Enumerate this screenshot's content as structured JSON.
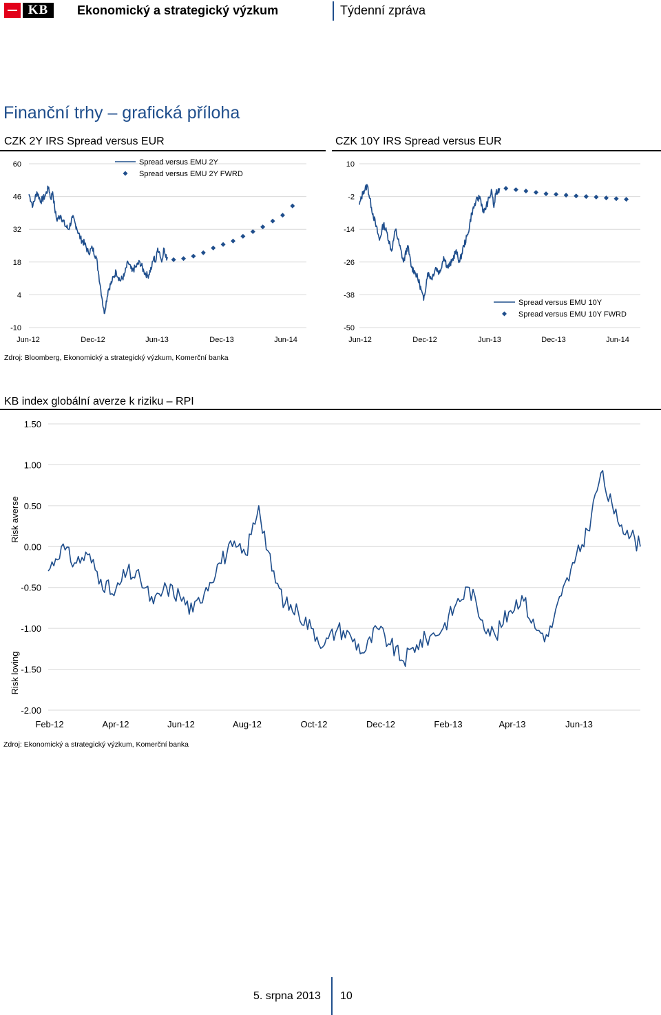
{
  "header": {
    "title": "Ekonomický a strategický výzkum",
    "subtitle": "Týdenní zpráva",
    "logo_text": "KB"
  },
  "page_title": "Finanční trhy – grafická příloha",
  "colors": {
    "series": "#1f4e8c",
    "title_blue": "#1f4e8c",
    "logo_red": "#e2001a"
  },
  "charts": {
    "c1": {
      "title": "CZK 2Y IRS Spread versus EUR"
    },
    "c2": {
      "title": "CZK 10Y IRS Spread versus EUR"
    },
    "c3": {
      "title": "KB index globální averze k riziku – RPI"
    }
  },
  "sources": {
    "top": "Zdroj: Bloomberg, Ekonomický a strategický výzkum, Komerční banka",
    "bottom": "Zdroj: Ekonomický a strategický výzkum, Komerční banka"
  },
  "footer": {
    "date": "5. srpna 2013",
    "page": "10"
  },
  "chart_data": [
    {
      "type": "line",
      "title": "CZK 2Y IRS Spread versus EUR",
      "ylim": [
        -10,
        60
      ],
      "y_ticks": [
        "60",
        "46",
        "32",
        "18",
        "4",
        "-10"
      ],
      "x_ticks": [
        "Jun-12",
        "Dec-12",
        "Jun-13",
        "Dec-13",
        "Jun-14"
      ],
      "legend_position": "top-center",
      "series": [
        {
          "name": "Spread versus EMU 2Y",
          "style": "line",
          "x": [
            0,
            2,
            4,
            6,
            8,
            10,
            11,
            12,
            13,
            14,
            16,
            18,
            20,
            22,
            24,
            26,
            28,
            30,
            32,
            34,
            35,
            36,
            37,
            38,
            40,
            42,
            44,
            46,
            48,
            50,
            52,
            54,
            56,
            58,
            60,
            62,
            63,
            64,
            65,
            66,
            67,
            68,
            69,
            70
          ],
          "values": [
            47,
            42,
            48,
            44,
            46,
            50,
            45,
            48,
            41,
            36,
            38,
            34,
            32,
            37,
            33,
            28,
            26,
            22,
            24,
            20,
            14,
            8,
            2,
            -4,
            6,
            10,
            14,
            10,
            12,
            18,
            14,
            16,
            18,
            14,
            12,
            16,
            20,
            18,
            24,
            22,
            18,
            24,
            20,
            20
          ]
        },
        {
          "name": "Spread versus EMU 2Y FWRD",
          "style": "diamond-markers",
          "x": [
            73,
            78,
            83,
            88,
            93,
            98,
            103,
            108,
            113,
            118,
            123,
            128,
            133
          ],
          "values": [
            19,
            19.5,
            20.5,
            22,
            24,
            25.5,
            27,
            29,
            31,
            33,
            35.5,
            38,
            42
          ]
        }
      ]
    },
    {
      "type": "line",
      "title": "CZK 10Y IRS Spread versus EUR",
      "ylim": [
        -50,
        10
      ],
      "y_ticks": [
        "10",
        "-2",
        "-14",
        "-26",
        "-38",
        "-50"
      ],
      "x_ticks": [
        "Jun-12",
        "Dec-12",
        "Jun-13",
        "Dec-13",
        "Jun-14"
      ],
      "legend_position": "bottom-right",
      "series": [
        {
          "name": "Spread versus EMU 10Y",
          "style": "line",
          "x": [
            0,
            2,
            4,
            6,
            8,
            10,
            12,
            14,
            16,
            18,
            20,
            22,
            24,
            26,
            28,
            30,
            32,
            34,
            36,
            38,
            40,
            42,
            44,
            46,
            48,
            50,
            52,
            54,
            56,
            58,
            60,
            62,
            64,
            66,
            67,
            68,
            69,
            70
          ],
          "values": [
            -5,
            0,
            2,
            -6,
            -12,
            -18,
            -12,
            -16,
            -22,
            -14,
            -20,
            -26,
            -20,
            -28,
            -30,
            -34,
            -40,
            -30,
            -32,
            -28,
            -30,
            -24,
            -28,
            -26,
            -22,
            -26,
            -20,
            -16,
            -8,
            -4,
            -2,
            -8,
            -4,
            0,
            -6,
            -1,
            0,
            1
          ]
        },
        {
          "name": "Spread versus EMU 10Y FWRD",
          "style": "diamond-markers",
          "x": [
            73,
            78,
            83,
            88,
            93,
            98,
            103,
            108,
            113,
            118,
            123,
            128,
            133
          ],
          "values": [
            1,
            0.5,
            0,
            -0.5,
            -1,
            -1.2,
            -1.5,
            -1.8,
            -2,
            -2.2,
            -2.5,
            -2.8,
            -3
          ]
        }
      ]
    },
    {
      "type": "line",
      "title": "KB index globální averze k riziku – RPI",
      "ylim": [
        -2.0,
        1.5
      ],
      "y_ticks": [
        "1.50",
        "1.00",
        "0.50",
        "0.00",
        "-0.50",
        "-1.00",
        "-1.50",
        "-2.00"
      ],
      "x_ticks": [
        "Feb-12",
        "Apr-12",
        "Jun-12",
        "Aug-12",
        "Oct-12",
        "Dec-12",
        "Feb-13",
        "Apr-13",
        "Jun-13"
      ],
      "y_side_labels": {
        "top": "Risk averse",
        "bottom": "Risk loving"
      },
      "series": [
        {
          "name": "RPI",
          "style": "line",
          "x": [
            0,
            0.2,
            0.4,
            0.6,
            0.8,
            1.0,
            1.2,
            1.4,
            1.6,
            1.8,
            2.0,
            2.2,
            2.4,
            2.6,
            2.8,
            3.0,
            3.2,
            3.4,
            3.6,
            3.8,
            4.0,
            4.2,
            4.4,
            4.6,
            4.8,
            5.0,
            5.2,
            5.4,
            5.6,
            5.8,
            6.0,
            6.2,
            6.4,
            6.6,
            6.8,
            7.0,
            7.2,
            7.4,
            7.6,
            7.8,
            8.0,
            8.2,
            8.4,
            8.6,
            8.8,
            9.0
          ],
          "values": [
            -0.3,
            0.0,
            -0.2,
            -0.1,
            -0.4,
            -0.6,
            -0.3,
            -0.4,
            -0.7,
            -0.5,
            -0.6,
            -0.8,
            -0.5,
            -0.2,
            0.0,
            -0.1,
            0.5,
            -0.3,
            -0.7,
            -0.8,
            -1.0,
            -1.2,
            -1.0,
            -1.1,
            -1.3,
            -1.0,
            -1.2,
            -1.4,
            -1.2,
            -1.1,
            -1.0,
            -0.7,
            -0.5,
            -0.9,
            -1.1,
            -0.8,
            -0.6,
            -1.0,
            -1.1,
            -0.6,
            -0.2,
            0.2,
            0.9,
            0.4,
            0.2,
            0.0
          ]
        }
      ]
    }
  ]
}
